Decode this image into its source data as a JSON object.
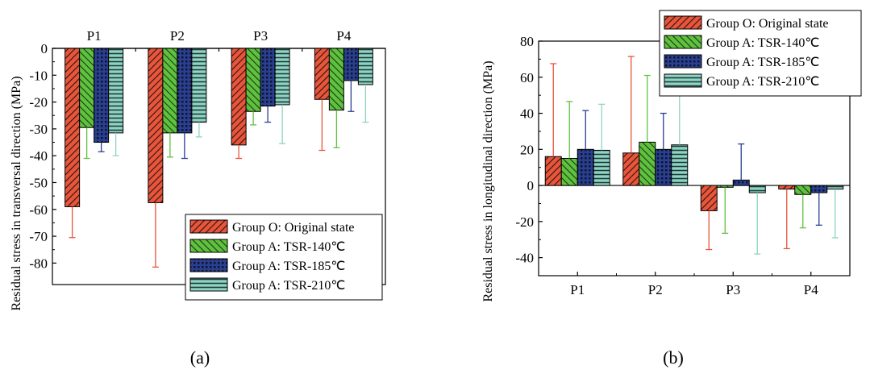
{
  "colors": {
    "original": "#e8553b",
    "tsr140": "#5fc23f",
    "tsr185": "#2a3f8f",
    "tsr210": "#8fd3c4"
  },
  "chart_data": [
    {
      "type": "bar",
      "panel_label": "(a)",
      "ylabel": "Residual stress in transversal direction (MPa)",
      "ylim": [
        -88,
        0
      ],
      "yticks": [
        0,
        -10,
        -20,
        -30,
        -40,
        -50,
        -60,
        -70,
        -80
      ],
      "categories": [
        "P1",
        "P2",
        "P3",
        "P4"
      ],
      "category_position": "top",
      "legend_position": "bottom-right",
      "series": [
        {
          "name": "Group O: Original state",
          "values": [
            -59,
            -57.5,
            -36,
            -19
          ],
          "errors": [
            11.5,
            24,
            5,
            19
          ]
        },
        {
          "name": "Group A: TSR-140℃",
          "values": [
            -29.5,
            -31.5,
            -23.5,
            -23
          ],
          "errors": [
            11.5,
            9,
            5,
            14
          ]
        },
        {
          "name": "Group A: TSR-185℃",
          "values": [
            -35,
            -31.5,
            -21.5,
            -12
          ],
          "errors": [
            3.5,
            9.5,
            6,
            11.5
          ]
        },
        {
          "name": "Group A: TSR-210℃",
          "values": [
            -31.5,
            -27.5,
            -21,
            -13.5
          ],
          "errors": [
            8.5,
            5.5,
            14.5,
            14
          ]
        }
      ]
    },
    {
      "type": "bar",
      "panel_label": "(b)",
      "ylabel": "Residual stress in longitudinal direction (MPa)",
      "ylim": [
        -50,
        80
      ],
      "yticks": [
        80,
        60,
        40,
        20,
        0,
        -20,
        -40
      ],
      "categories": [
        "P1",
        "P2",
        "P3",
        "P4"
      ],
      "category_position": "bottom",
      "legend_position": "top-right",
      "series": [
        {
          "name": "Group O: Original state",
          "values": [
            16,
            18,
            -14,
            -2
          ],
          "errors": [
            51.5,
            53.5,
            21.5,
            33
          ]
        },
        {
          "name": "Group A: TSR-140℃",
          "values": [
            15,
            24,
            -1,
            -5
          ],
          "errors": [
            31.5,
            37,
            25.5,
            18.5
          ]
        },
        {
          "name": "Group A: TSR-185℃",
          "values": [
            20,
            20,
            3,
            -4
          ],
          "errors": [
            21.5,
            20,
            20,
            18
          ]
        },
        {
          "name": "Group A: TSR-210℃",
          "values": [
            19.5,
            22.5,
            -4,
            -2
          ],
          "errors": [
            25.5,
            31,
            34,
            27
          ]
        }
      ]
    }
  ]
}
